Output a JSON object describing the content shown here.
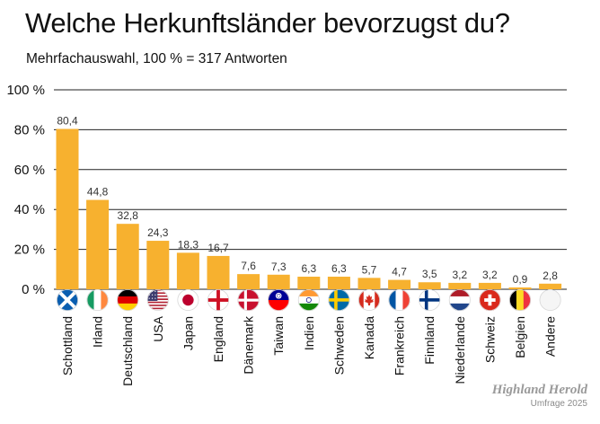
{
  "title": "Welche Herkunftsländer bevorzugst du?",
  "subtitle": "Mehrfachauswahl, 100 % = 317 Antworten",
  "brand": {
    "name": "Highland Herold",
    "sub": "Umfrage 2025"
  },
  "chart_data": {
    "type": "bar",
    "categories": [
      "Schottland",
      "Irland",
      "Deutschland",
      "USA",
      "Japan",
      "England",
      "Dänemark",
      "Taiwan",
      "Indien",
      "Schweden",
      "Kanada",
      "Frankreich",
      "Finnland",
      "Niederlande",
      "Schweiz",
      "Belgien",
      "Andere"
    ],
    "values": [
      80.4,
      44.8,
      32.8,
      24.3,
      18.3,
      16.7,
      7.6,
      7.3,
      6.3,
      6.3,
      5.7,
      4.7,
      3.5,
      3.2,
      3.2,
      0.9,
      2.8
    ],
    "value_labels": [
      "80,4",
      "44,8",
      "32,8",
      "24,3",
      "18,3",
      "16,7",
      "7,6",
      "7,3",
      "6,3",
      "6,3",
      "5,7",
      "4,7",
      "3,5",
      "3,2",
      "3,2",
      "0,9",
      "2,8"
    ],
    "flags": [
      "scotland-flag-icon",
      "ireland-flag-icon",
      "germany-flag-icon",
      "usa-flag-icon",
      "japan-flag-icon",
      "england-flag-icon",
      "denmark-flag-icon",
      "taiwan-flag-icon",
      "india-flag-icon",
      "sweden-flag-icon",
      "canada-flag-icon",
      "france-flag-icon",
      "finland-flag-icon",
      "netherlands-flag-icon",
      "switzerland-flag-icon",
      "belgium-flag-icon",
      "other-circle-icon"
    ],
    "ylim": [
      0,
      100
    ],
    "yticks": [
      0,
      20,
      40,
      60,
      80,
      100
    ],
    "ytick_labels": [
      "0 %",
      "20 %",
      "40 %",
      "60 %",
      "80 %",
      "100 %"
    ],
    "grid": true,
    "bar_color": "#f7b12f",
    "grid_color": "#222222"
  }
}
